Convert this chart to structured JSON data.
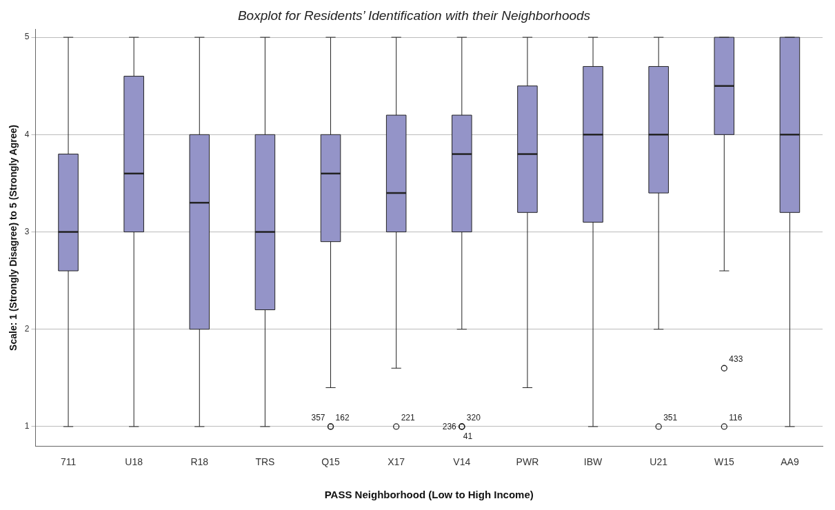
{
  "chart_data": {
    "type": "box",
    "title": "Boxplot for Residents’ Identification with their Neighborhoods",
    "xlabel": "PASS Neighborhood (Low to High Income)",
    "ylabel": "Scale: 1 (Strongly Disagree) to 5 (Strongly Agree)",
    "categories": [
      "711",
      "U18",
      "R18",
      "TRS",
      "Q15",
      "X17",
      "V14",
      "PWR",
      "IBW",
      "U21",
      "W15",
      "AA9"
    ],
    "color": "#9494c8",
    "boxes": [
      {
        "low": 1,
        "q1": 2.6,
        "median": 3,
        "q3": 3.8,
        "high": 5
      },
      {
        "low": 1,
        "q1": 3,
        "median": 3.6,
        "q3": 4.6,
        "high": 5
      },
      {
        "low": 1,
        "q1": 2,
        "median": 3.3,
        "q3": 4,
        "high": 5
      },
      {
        "low": 1,
        "q1": 2.2,
        "median": 3,
        "q3": 4,
        "high": 5
      },
      {
        "low": 1.4,
        "q1": 2.9,
        "median": 3.6,
        "q3": 4,
        "high": 5,
        "outliers": [
          1,
          1
        ]
      },
      {
        "low": 1.6,
        "q1": 3,
        "median": 3.4,
        "q3": 4.2,
        "high": 5,
        "outliers": [
          1
        ]
      },
      {
        "low": 2,
        "q1": 3,
        "median": 3.8,
        "q3": 4.2,
        "high": 5,
        "outliers": [
          1,
          1,
          1
        ]
      },
      {
        "low": 1.4,
        "q1": 3.2,
        "median": 3.8,
        "q3": 4.5,
        "high": 5
      },
      {
        "low": 1,
        "q1": 3.1,
        "median": 4,
        "q3": 4.7,
        "high": 5
      },
      {
        "low": 2,
        "q1": 3.4,
        "median": 4,
        "q3": 4.7,
        "high": 5,
        "outliers": [
          1
        ]
      },
      {
        "low": 2.6,
        "q1": 4,
        "median": 4.5,
        "q3": 5,
        "high": 5,
        "outliers": [
          1.6,
          1
        ]
      },
      {
        "low": 1,
        "q1": 3.2,
        "median": 4,
        "q3": 5,
        "high": 5
      }
    ],
    "ylim": [
      0.8,
      5.08
    ],
    "yticks": [
      1,
      2,
      3,
      4,
      5
    ],
    "grid": "y",
    "legend": false,
    "annotations": [
      "357",
      "162",
      "221",
      "236",
      "320",
      "41",
      "351",
      "433",
      "116"
    ]
  }
}
